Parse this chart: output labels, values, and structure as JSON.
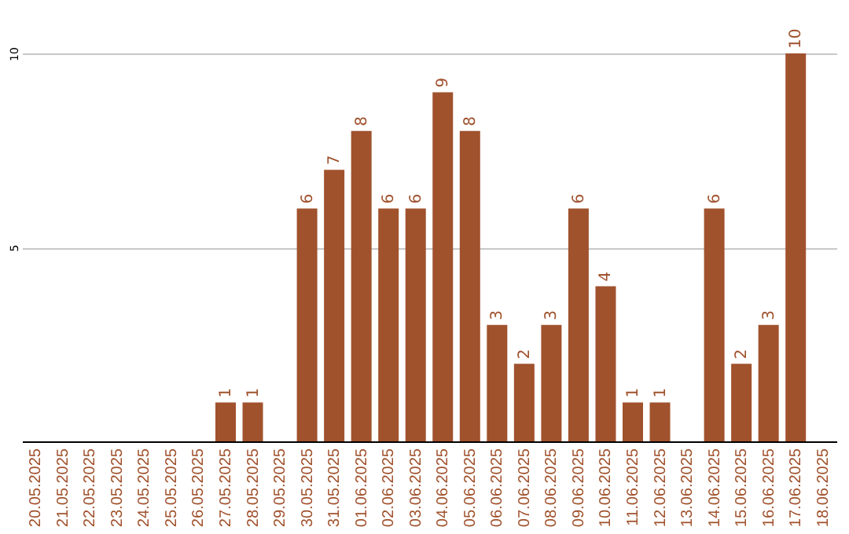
{
  "chart_data": {
    "type": "bar",
    "categories": [
      "20.05.2025",
      "21.05.2025",
      "22.05.2025",
      "23.05.2025",
      "24.05.2025",
      "25.05.2025",
      "26.05.2025",
      "27.05.2025",
      "28.05.2025",
      "29.05.2025",
      "30.05.2025",
      "31.05.2025",
      "01.06.2025",
      "02.06.2025",
      "03.06.2025",
      "04.06.2025",
      "05.06.2025",
      "06.06.2025",
      "07.06.2025",
      "08.06.2025",
      "09.06.2025",
      "10.06.2025",
      "11.06.2025",
      "12.06.2025",
      "13.06.2025",
      "14.06.2025",
      "15.06.2025",
      "16.06.2025",
      "17.06.2025",
      "18.06.2025"
    ],
    "values": [
      0,
      0,
      0,
      0,
      0,
      0,
      0,
      1,
      1,
      0,
      6,
      7,
      8,
      6,
      6,
      9,
      8,
      3,
      2,
      3,
      6,
      4,
      1,
      1,
      0,
      6,
      2,
      3,
      10,
      0
    ],
    "value_labels": [
      null,
      null,
      null,
      null,
      null,
      null,
      null,
      "1",
      "1",
      null,
      "6",
      "7",
      "8",
      "6",
      "6",
      "9",
      "8",
      "3",
      "2",
      "3",
      "6",
      "4",
      "1",
      "1",
      null,
      "6",
      "2",
      "3",
      "10",
      null
    ],
    "color": "#a0522d",
    "ylim": [
      0,
      10
    ],
    "yticks": [
      5,
      10
    ],
    "grid": "y"
  }
}
